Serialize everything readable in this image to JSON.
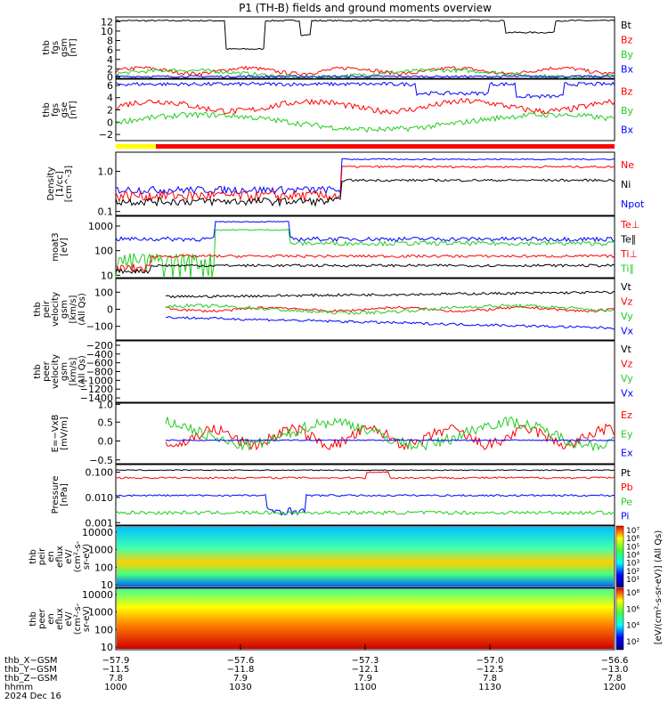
{
  "title": "P1 (TH-B) fields and ground moments overview",
  "colors": {
    "black": "#000000",
    "red": "#ff0000",
    "green": "#22cc22",
    "blue": "#0000ff",
    "yellow": "#ffff00"
  },
  "chart_data": {
    "type": "line",
    "x_unit": "hhmm",
    "xrange": [
      "1000",
      "1200"
    ],
    "panels": [
      {
        "id": "fgs",
        "ylabel": [
          "thb",
          "fgs",
          "gsm",
          "[nT]"
        ],
        "yticks": [
          "0",
          "2",
          "4",
          "6",
          "8",
          "10",
          "12"
        ],
        "yrange": [
          0,
          13
        ],
        "log": false,
        "legend": [
          {
            "name": "Bt",
            "color": "black"
          },
          {
            "name": "Bz",
            "color": "red"
          },
          {
            "name": "By",
            "color": "green"
          },
          {
            "name": "Bx",
            "color": "blue"
          }
        ]
      },
      {
        "id": "fgs_dsl",
        "ylabel": [
          "thb",
          "fgs",
          "gse",
          "[nT]"
        ],
        "yticks": [
          "−2",
          "0",
          "2",
          "4",
          "6"
        ],
        "yrange": [
          -3,
          7
        ],
        "log": false,
        "legend": [
          {
            "name": "Bz",
            "color": "red"
          },
          {
            "name": "By",
            "color": "green"
          },
          {
            "name": "Bx",
            "color": "blue"
          }
        ]
      },
      {
        "id": "density",
        "ylabel": [
          "Density",
          "[1/cc]",
          "[cm^-3]"
        ],
        "yticks": [
          "0.1",
          "1.0"
        ],
        "yrange": [
          0.08,
          3.0
        ],
        "log": true,
        "legend": [
          {
            "name": "Ne",
            "color": "red"
          },
          {
            "name": "Ni",
            "color": "black"
          },
          {
            "name": "Npot",
            "color": "blue"
          }
        ]
      },
      {
        "id": "temp",
        "ylabel": [
          "moat3",
          "[eV]"
        ],
        "yticks": [
          "10",
          "100",
          "1000"
        ],
        "yrange": [
          8,
          2500
        ],
        "log": true,
        "legend": [
          {
            "name": "Te⊥",
            "color": "red"
          },
          {
            "name": "Te∥",
            "color": "black"
          },
          {
            "name": "Ti⊥",
            "color": "red"
          },
          {
            "name": "Ti∥",
            "color": "green"
          }
        ]
      },
      {
        "id": "vi",
        "ylabel": [
          "thb",
          "peir",
          "velocity",
          "gsm",
          "[km/s]",
          "(All Qs)"
        ],
        "yticks": [
          "−100",
          "0",
          "100"
        ],
        "yrange": [
          -180,
          180
        ],
        "log": false,
        "legend": [
          {
            "name": "Vt",
            "color": "black"
          },
          {
            "name": "Vz",
            "color": "red"
          },
          {
            "name": "Vy",
            "color": "green"
          },
          {
            "name": "Vx",
            "color": "blue"
          }
        ]
      },
      {
        "id": "ve",
        "ylabel": [
          "thb",
          "peer",
          "velocity",
          "gsm",
          "[km/s]",
          "(All Qs)"
        ],
        "yticks": [
          "−200",
          "−400",
          "−600",
          "−800",
          "−1000",
          "−1200",
          "−1400"
        ],
        "yrange": [
          -1500,
          -100
        ],
        "log": false,
        "legend": [
          {
            "name": "Vt",
            "color": "black"
          },
          {
            "name": "Vz",
            "color": "red"
          },
          {
            "name": "Vy",
            "color": "green"
          },
          {
            "name": "Vx",
            "color": "blue"
          }
        ]
      },
      {
        "id": "efield",
        "ylabel": [
          "E=−VxB",
          "[mV/m]"
        ],
        "yticks": [
          "−0.5",
          "0.0",
          "0.5",
          "1.0"
        ],
        "yrange": [
          -0.6,
          1.0
        ],
        "log": false,
        "legend": [
          {
            "name": "Ez",
            "color": "red"
          },
          {
            "name": "Ey",
            "color": "green"
          },
          {
            "name": "Ex",
            "color": "blue"
          }
        ]
      },
      {
        "id": "pressure",
        "ylabel": [
          "Pressure",
          "[nPa]"
        ],
        "yticks": [
          "0.001",
          "0.010",
          "0.100"
        ],
        "yrange": [
          0.0008,
          0.2
        ],
        "log": true,
        "legend": [
          {
            "name": "Pt",
            "color": "black"
          },
          {
            "name": "Pb",
            "color": "red"
          },
          {
            "name": "Pe",
            "color": "green"
          },
          {
            "name": "Pi",
            "color": "blue"
          }
        ]
      },
      {
        "id": "ion_spec",
        "ylabel": [
          "thb",
          "peir",
          "en",
          "eflux",
          "eV/",
          "(cm²-s-",
          "sr-eV)"
        ],
        "yticks": [
          "10",
          "100",
          "1000",
          "10000"
        ],
        "log": true,
        "spectrogram": true
      },
      {
        "id": "ele_spec",
        "ylabel": [
          "thb",
          "peer",
          "en",
          "eflux",
          "eV/",
          "(cm²-s-",
          "sr-eV)"
        ],
        "yticks": [
          "10",
          "100",
          "1000",
          "10000"
        ],
        "log": true,
        "spectrogram": true
      }
    ],
    "colorbar_ticks_top": [
      "10⁷",
      "10⁶",
      "10⁵",
      "10⁴",
      "10³",
      "10²",
      "10¹"
    ],
    "colorbar_ticks_bottom": [
      "10⁸",
      "10⁶",
      "10⁴",
      "10²"
    ],
    "colorbar_label": "[eV/(cm²-s-sr-eV)] (All Qs)",
    "x_axis": {
      "rows": [
        {
          "label": "thb_X−GSM",
          "values": [
            "−57.9",
            "−57.6",
            "−57.3",
            "−57.0",
            "−56.6"
          ]
        },
        {
          "label": "thb_Y−GSM",
          "values": [
            "−11.5",
            "−11.8",
            "−12.1",
            "−12.5",
            "−13.0"
          ]
        },
        {
          "label": "thb_Z−GSM",
          "values": [
            "7.8",
            "7.9",
            "7.9",
            "7.8",
            "7.8"
          ]
        },
        {
          "label": "hhmm",
          "values": [
            "1000",
            "1030",
            "1100",
            "1130",
            "1200"
          ]
        }
      ],
      "date": "2024 Dec 16"
    }
  }
}
